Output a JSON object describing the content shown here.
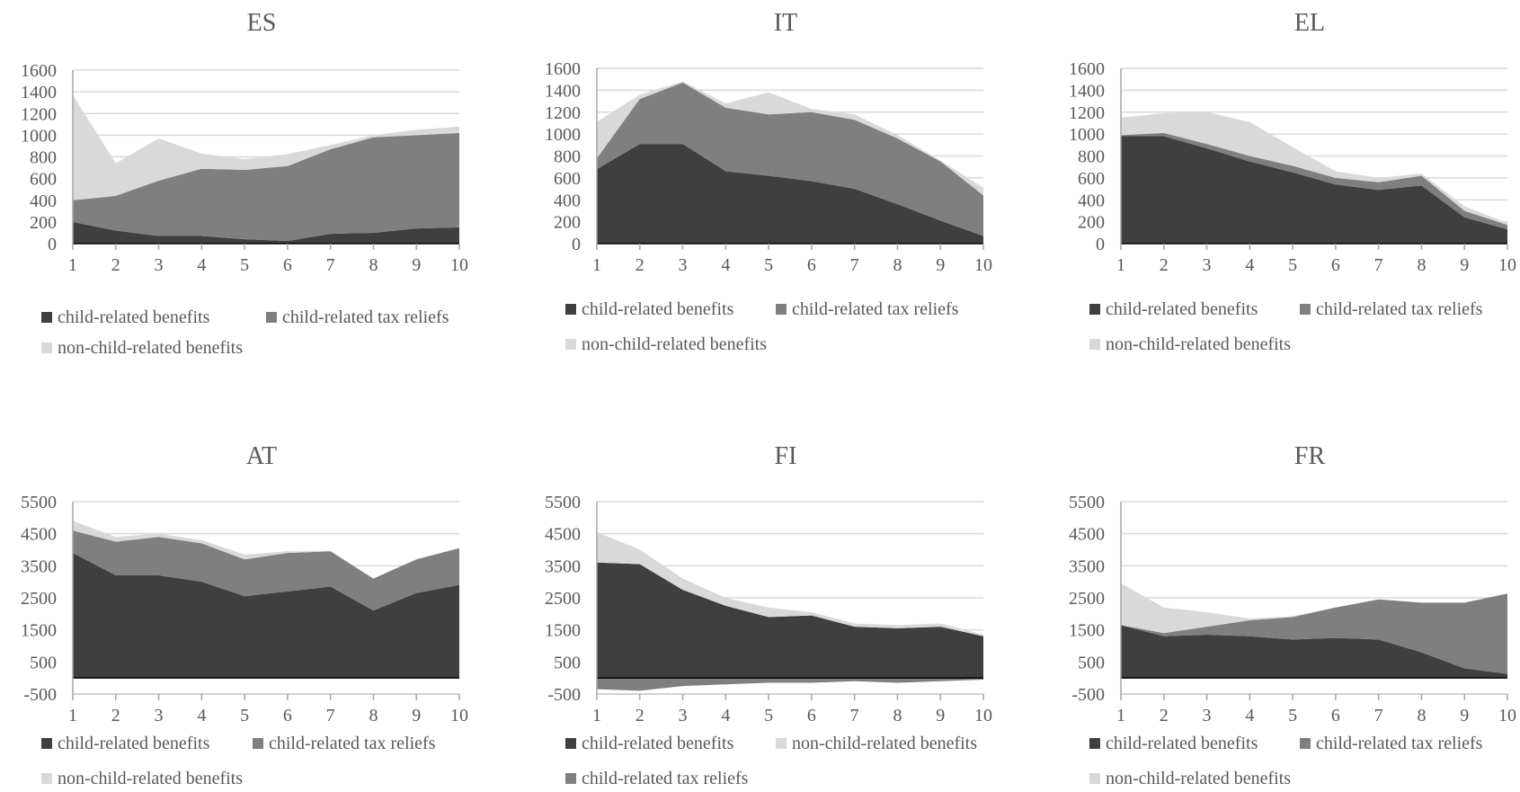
{
  "colors": {
    "child-related benefits": "#3f3f3f",
    "child-related tax reliefs": "#7f7f7f",
    "non-child-related benefits": "#d9d9d9",
    "grid": "#d9d9d9",
    "axis": "#a6a6a6",
    "text": "#595959"
  },
  "chart_data": [
    {
      "type": "area",
      "title": "ES",
      "x": [
        1,
        2,
        3,
        4,
        5,
        6,
        7,
        8,
        9,
        10
      ],
      "ylim": [
        0,
        1600
      ],
      "yticks": [
        0,
        200,
        400,
        600,
        800,
        1000,
        1200,
        1400,
        1600
      ],
      "grid": true,
      "legend_position": "bottom",
      "legend": [
        "child-related benefits",
        "child-related tax reliefs",
        "non-child-related benefits"
      ],
      "stack_order": [
        "child-related benefits",
        "child-related tax reliefs",
        "non-child-related benefits"
      ],
      "series": [
        {
          "name": "child-related benefits",
          "values": [
            200,
            120,
            70,
            70,
            40,
            25,
            90,
            100,
            140,
            150
          ]
        },
        {
          "name": "child-related tax reliefs",
          "values": [
            200,
            320,
            510,
            620,
            640,
            690,
            780,
            880,
            860,
            870
          ]
        },
        {
          "name": "non-child-related benefits",
          "values": [
            970,
            300,
            390,
            140,
            100,
            110,
            40,
            20,
            50,
            60
          ]
        }
      ]
    },
    {
      "type": "area",
      "title": "IT",
      "x": [
        1,
        2,
        3,
        4,
        5,
        6,
        7,
        8,
        9,
        10
      ],
      "ylim": [
        0,
        1600
      ],
      "yticks": [
        0,
        200,
        400,
        600,
        800,
        1000,
        1200,
        1400,
        1600
      ],
      "grid": true,
      "legend_position": "bottom",
      "legend": [
        "child-related benefits",
        "child-related tax reliefs",
        "non-child-related benefits"
      ],
      "stack_order": [
        "child-related benefits",
        "child-related tax reliefs",
        "non-child-related benefits"
      ],
      "series": [
        {
          "name": "child-related benefits",
          "values": [
            680,
            910,
            910,
            660,
            620,
            570,
            500,
            360,
            210,
            70
          ]
        },
        {
          "name": "child-related tax reliefs",
          "values": [
            100,
            410,
            560,
            580,
            560,
            630,
            630,
            600,
            540,
            370
          ]
        },
        {
          "name": "non-child-related benefits",
          "values": [
            330,
            40,
            10,
            40,
            200,
            30,
            50,
            30,
            10,
            70
          ]
        }
      ]
    },
    {
      "type": "area",
      "title": "EL",
      "x": [
        1,
        2,
        3,
        4,
        5,
        6,
        7,
        8,
        9,
        10
      ],
      "ylim": [
        0,
        1600
      ],
      "yticks": [
        0,
        200,
        400,
        600,
        800,
        1000,
        1200,
        1400,
        1600
      ],
      "grid": true,
      "legend_position": "bottom",
      "legend": [
        "child-related benefits",
        "child-related tax reliefs",
        "non-child-related benefits"
      ],
      "stack_order": [
        "child-related benefits",
        "child-related tax reliefs",
        "non-child-related benefits"
      ],
      "series": [
        {
          "name": "child-related benefits",
          "values": [
            980,
            980,
            870,
            750,
            650,
            540,
            490,
            530,
            240,
            130
          ]
        },
        {
          "name": "child-related tax reliefs",
          "values": [
            10,
            30,
            40,
            50,
            60,
            60,
            70,
            90,
            60,
            40
          ]
        },
        {
          "name": "non-child-related benefits",
          "values": [
            160,
            180,
            290,
            310,
            170,
            60,
            40,
            20,
            40,
            20
          ]
        }
      ]
    },
    {
      "type": "area",
      "title": "AT",
      "x": [
        1,
        2,
        3,
        4,
        5,
        6,
        7,
        8,
        9,
        10
      ],
      "ylim": [
        -500,
        5500
      ],
      "yticks": [
        -500,
        500,
        1500,
        2500,
        3500,
        4500,
        5500
      ],
      "grid": true,
      "legend_position": "bottom",
      "legend": [
        "child-related benefits",
        "child-related tax reliefs",
        "non-child-related benefits"
      ],
      "stack_order": [
        "child-related benefits",
        "child-related tax reliefs",
        "non-child-related benefits"
      ],
      "series": [
        {
          "name": "child-related benefits",
          "values": [
            3900,
            3200,
            3200,
            3000,
            2550,
            2700,
            2850,
            2100,
            2650,
            2900
          ]
        },
        {
          "name": "child-related tax reliefs",
          "values": [
            700,
            1050,
            1200,
            1200,
            1150,
            1200,
            1100,
            1000,
            1050,
            1150
          ]
        },
        {
          "name": "non-child-related benefits",
          "values": [
            300,
            150,
            100,
            100,
            150,
            50,
            20,
            0,
            0,
            0
          ]
        }
      ]
    },
    {
      "type": "area",
      "title": "FI",
      "x": [
        1,
        2,
        3,
        4,
        5,
        6,
        7,
        8,
        9,
        10
      ],
      "ylim": [
        -500,
        5500
      ],
      "yticks": [
        -500,
        500,
        1500,
        2500,
        3500,
        4500,
        5500
      ],
      "grid": true,
      "legend_position": "bottom",
      "legend": [
        "child-related benefits",
        "non-child-related benefits",
        "child-related tax reliefs"
      ],
      "stack_order": [
        "child-related benefits",
        "child-related tax reliefs",
        "non-child-related benefits"
      ],
      "series": [
        {
          "name": "child-related benefits",
          "values": [
            3600,
            3550,
            2750,
            2250,
            1900,
            1950,
            1600,
            1550,
            1600,
            1300
          ]
        },
        {
          "name": "non-child-related benefits",
          "values": [
            950,
            450,
            350,
            250,
            300,
            100,
            100,
            100,
            100,
            50
          ]
        },
        {
          "name": "child-related tax reliefs",
          "values": [
            -350,
            -400,
            -250,
            -200,
            -150,
            -150,
            -100,
            -150,
            -100,
            -50
          ]
        }
      ]
    },
    {
      "type": "area",
      "title": "FR",
      "x": [
        1,
        2,
        3,
        4,
        5,
        6,
        7,
        8,
        9,
        10
      ],
      "ylim": [
        -500,
        5500
      ],
      "yticks": [
        -500,
        500,
        1500,
        2500,
        3500,
        4500,
        5500
      ],
      "grid": true,
      "legend_position": "bottom",
      "legend": [
        "child-related benefits",
        "child-related tax reliefs",
        "non-child-related benefits"
      ],
      "stack_order": [
        "child-related benefits",
        "child-related tax reliefs",
        "non-child-related benefits"
      ],
      "series": [
        {
          "name": "child-related benefits",
          "values": [
            1650,
            1300,
            1350,
            1300,
            1200,
            1250,
            1200,
            800,
            300,
            130
          ]
        },
        {
          "name": "child-related tax reliefs",
          "values": [
            0,
            100,
            250,
            500,
            700,
            950,
            1250,
            1550,
            2050,
            2500
          ]
        },
        {
          "name": "non-child-related benefits",
          "values": [
            1300,
            800,
            450,
            50,
            30,
            0,
            0,
            0,
            0,
            0
          ]
        }
      ]
    }
  ]
}
